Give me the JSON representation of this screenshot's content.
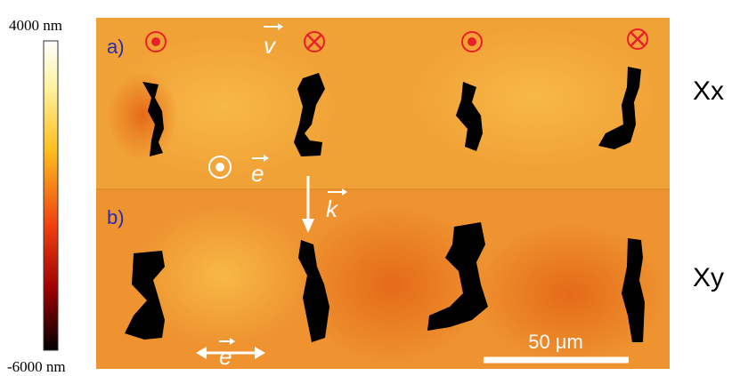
{
  "colorbar": {
    "max_label": "4000 nm",
    "min_label": "-6000 nm"
  },
  "panels": [
    {
      "label": "a)",
      "row_label": "Xx"
    },
    {
      "label": "b)",
      "row_label": "Xy"
    }
  ],
  "vectors": {
    "v": "v",
    "e_top": "e",
    "k": "k",
    "e_bottom": "e"
  },
  "scale_bar": "50 μm"
}
